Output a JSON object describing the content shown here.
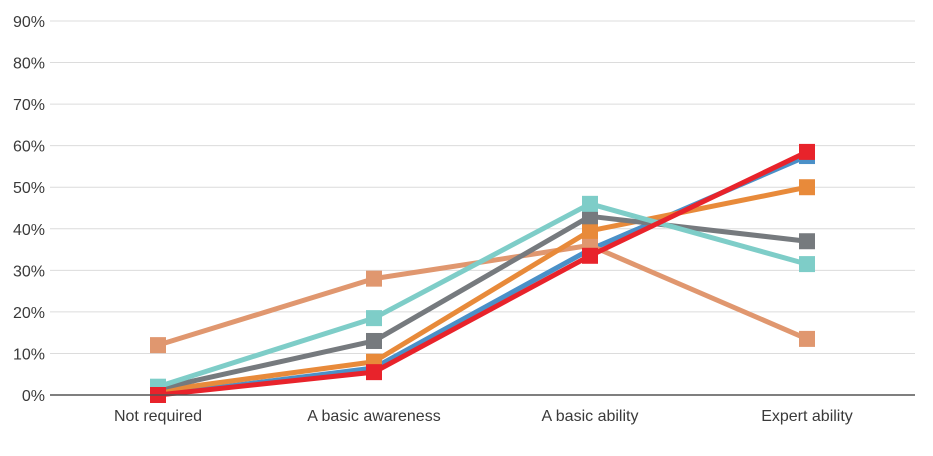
{
  "chart_data": {
    "type": "line",
    "title": "",
    "xlabel": "",
    "ylabel": "",
    "categories": [
      "Not required",
      "A basic awareness",
      "A basic ability",
      "Expert ability"
    ],
    "y_ticks": [
      "0%",
      "10%",
      "20%",
      "30%",
      "40%",
      "50%",
      "60%",
      "70%",
      "80%",
      "90%"
    ],
    "ylim": [
      0,
      90
    ],
    "grid": true,
    "legend": "none",
    "marker": "square",
    "series": [
      {
        "color": "#4a90c8",
        "values": [
          0,
          6.5,
          35,
          57.5
        ]
      },
      {
        "color": "#e0976f",
        "values": [
          12,
          28,
          36,
          13.5
        ]
      },
      {
        "color": "#e88a3a",
        "values": [
          1,
          8,
          39.5,
          50
        ]
      },
      {
        "color": "#767a7e",
        "values": [
          1.5,
          13,
          43,
          37
        ]
      },
      {
        "color": "#7ecdc8",
        "values": [
          2,
          18.5,
          46,
          31.5
        ]
      },
      {
        "color": "#e8232b",
        "values": [
          0,
          5.5,
          33.5,
          58.5
        ]
      }
    ]
  }
}
